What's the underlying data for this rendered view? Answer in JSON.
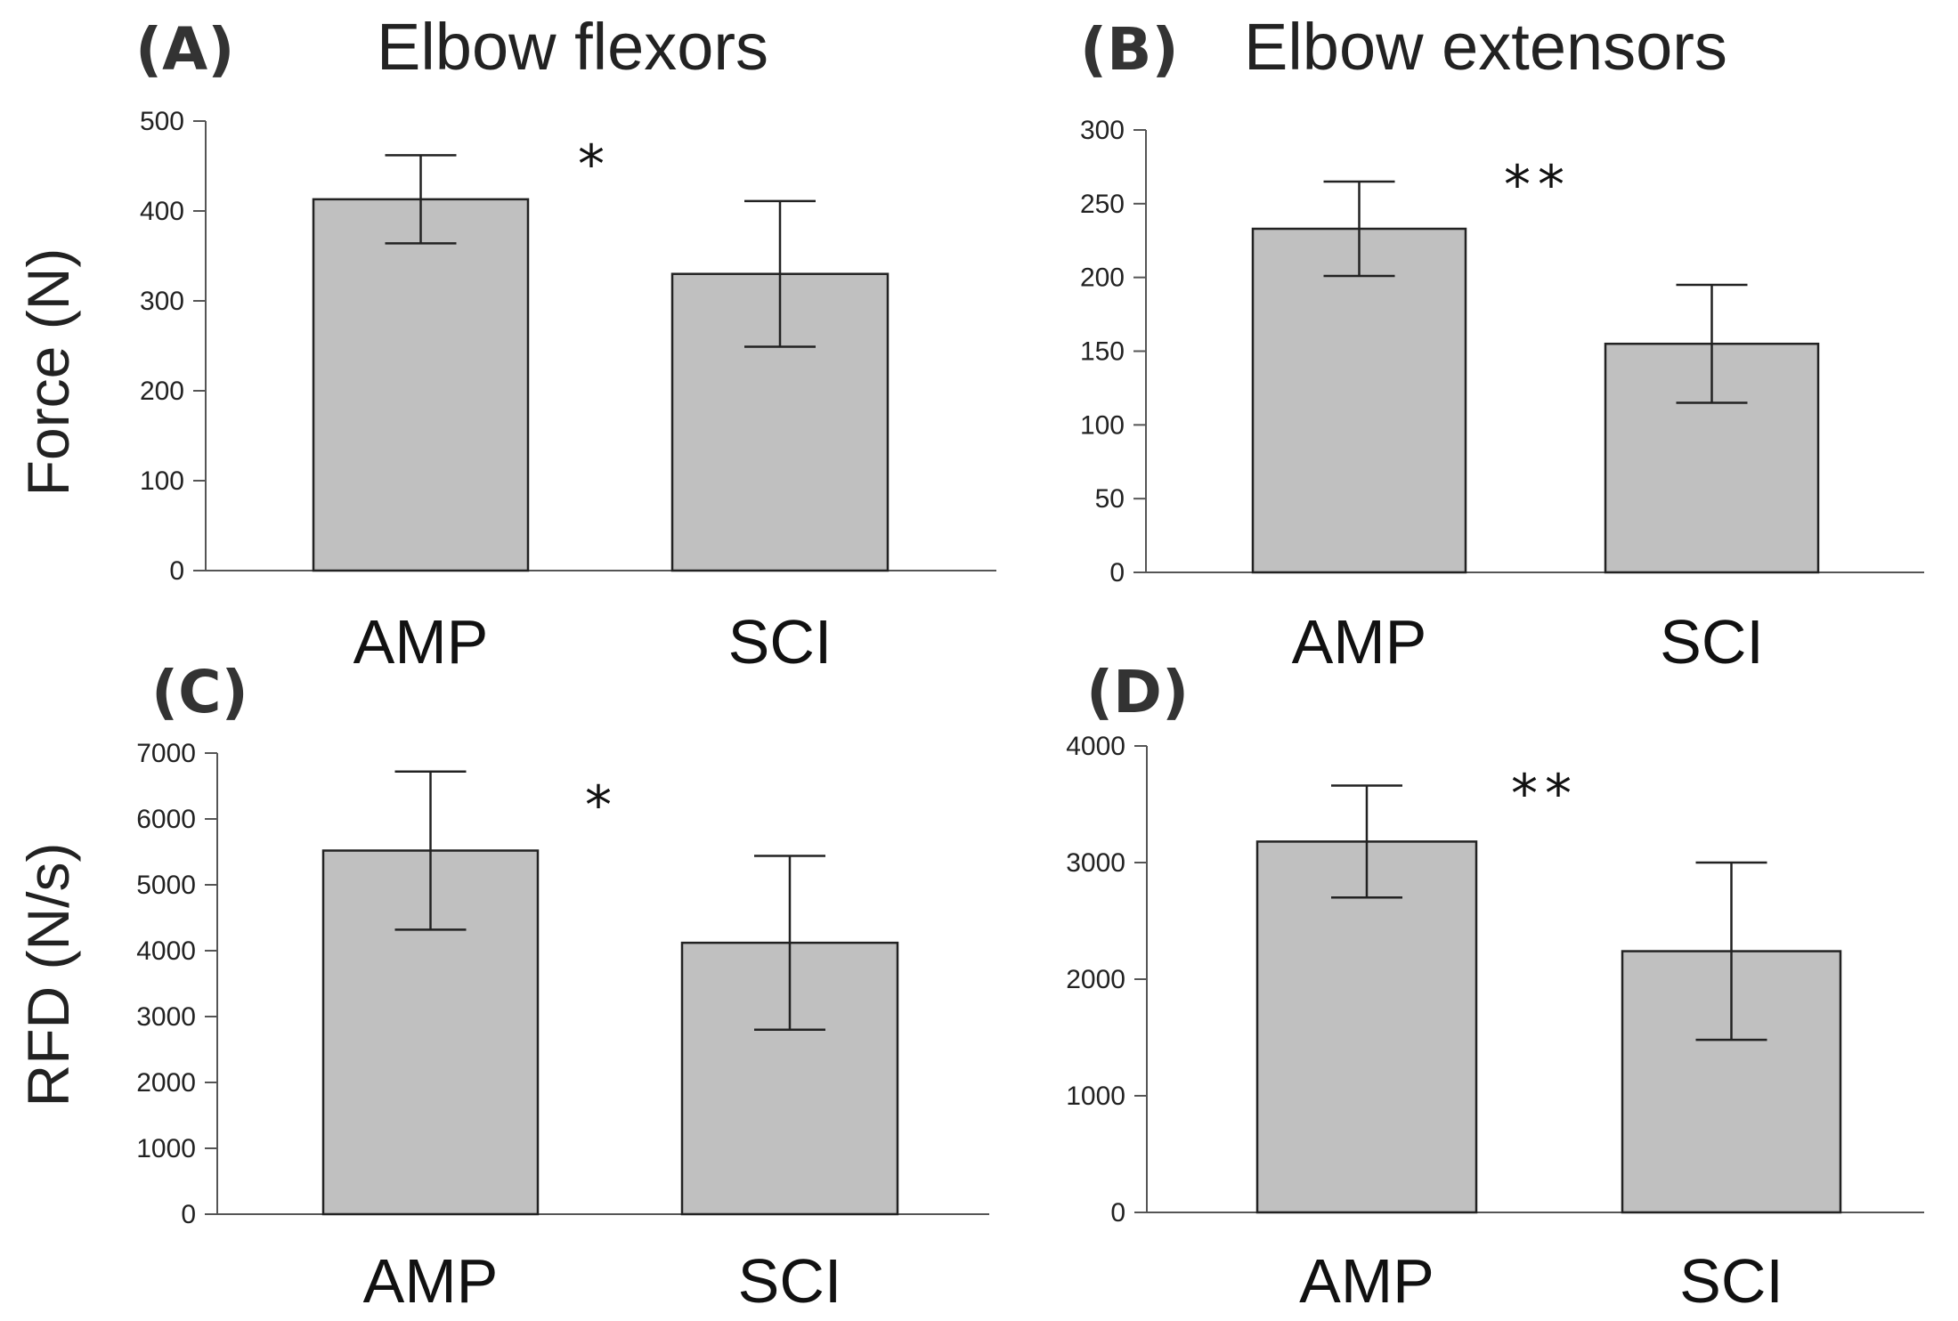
{
  "axis_titles": {
    "force": "Force (N)",
    "rfd": "RFD (N/s)"
  },
  "colors": {
    "bar_fill": "#c0c0c0",
    "bar_stroke": "#222222",
    "axis": "#555555",
    "error_bar": "#222222"
  },
  "chart_data": [
    {
      "panel": "(A)",
      "title": "Elbow flexors",
      "type": "bar",
      "categories": [
        "AMP",
        "SCI"
      ],
      "values": [
        413,
        330
      ],
      "errors": [
        49,
        81
      ],
      "ylabel": "Force (N)",
      "ylim": [
        0,
        500
      ],
      "yticks": [
        0,
        100,
        200,
        300,
        400,
        500
      ],
      "significance": "*"
    },
    {
      "panel": "(B)",
      "title": "Elbow extensors",
      "type": "bar",
      "categories": [
        "AMP",
        "SCI"
      ],
      "values": [
        233,
        155
      ],
      "errors": [
        32,
        40
      ],
      "ylabel": "",
      "ylim": [
        0,
        300
      ],
      "yticks": [
        0,
        50,
        100,
        150,
        200,
        250,
        300
      ],
      "significance": "**"
    },
    {
      "panel": "(C)",
      "title": "",
      "type": "bar",
      "categories": [
        "AMP",
        "SCI"
      ],
      "values": [
        5520,
        4120
      ],
      "errors": [
        1200,
        1320
      ],
      "ylabel": "RFD (N/s)",
      "ylim": [
        0,
        7000
      ],
      "yticks": [
        0,
        1000,
        2000,
        3000,
        4000,
        5000,
        6000,
        7000
      ],
      "significance": "*"
    },
    {
      "panel": "(D)",
      "title": "",
      "type": "bar",
      "categories": [
        "AMP",
        "SCI"
      ],
      "values": [
        3180,
        2240
      ],
      "errors": [
        480,
        760
      ],
      "ylabel": "",
      "ylim": [
        0,
        4000
      ],
      "yticks": [
        0,
        1000,
        2000,
        3000,
        4000
      ],
      "significance": "**"
    }
  ]
}
